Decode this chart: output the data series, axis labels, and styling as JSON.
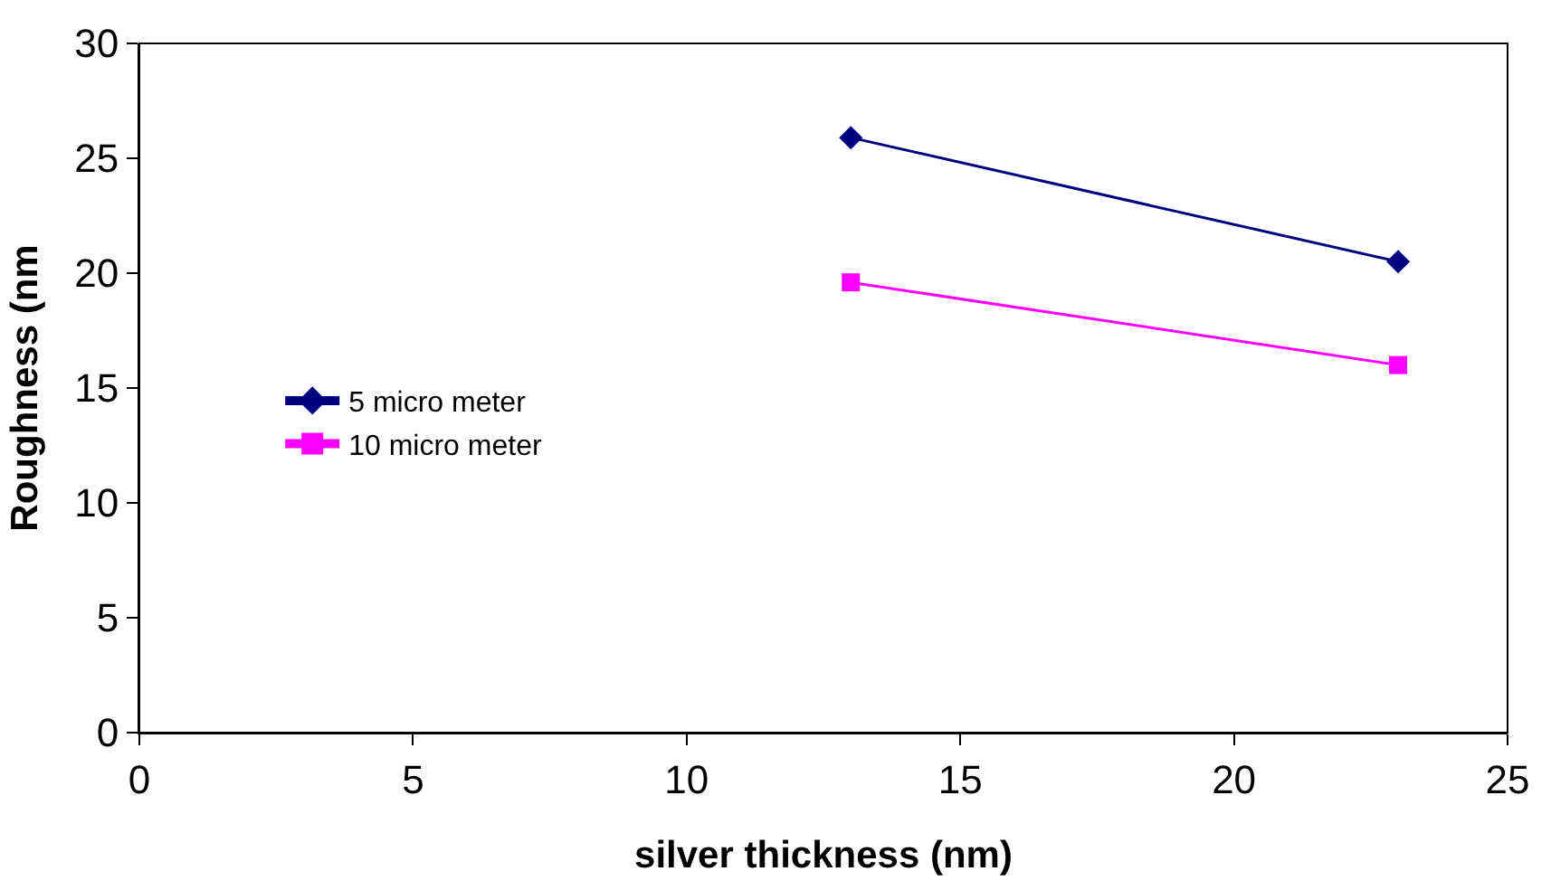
{
  "chart_data": {
    "type": "line",
    "xlabel": "silver thickness (nm)",
    "ylabel": "Roughness (nm",
    "x": [
      13,
      23
    ],
    "series": [
      {
        "name": "5 micro meter",
        "color": "#000080",
        "values": [
          25.9,
          20.5
        ],
        "marker": "diamond"
      },
      {
        "name": "10 micro meter",
        "color": "#ff00ff",
        "values": [
          19.6,
          16.0
        ],
        "marker": "square"
      }
    ],
    "xlim": [
      0,
      25
    ],
    "xticks": [
      0,
      5,
      10,
      15,
      20,
      25
    ],
    "ylim": [
      0,
      30
    ],
    "yticks": [
      0,
      5,
      10,
      15,
      20,
      25,
      30
    ],
    "grid": false,
    "legend": "left",
    "line_style": "solid"
  }
}
